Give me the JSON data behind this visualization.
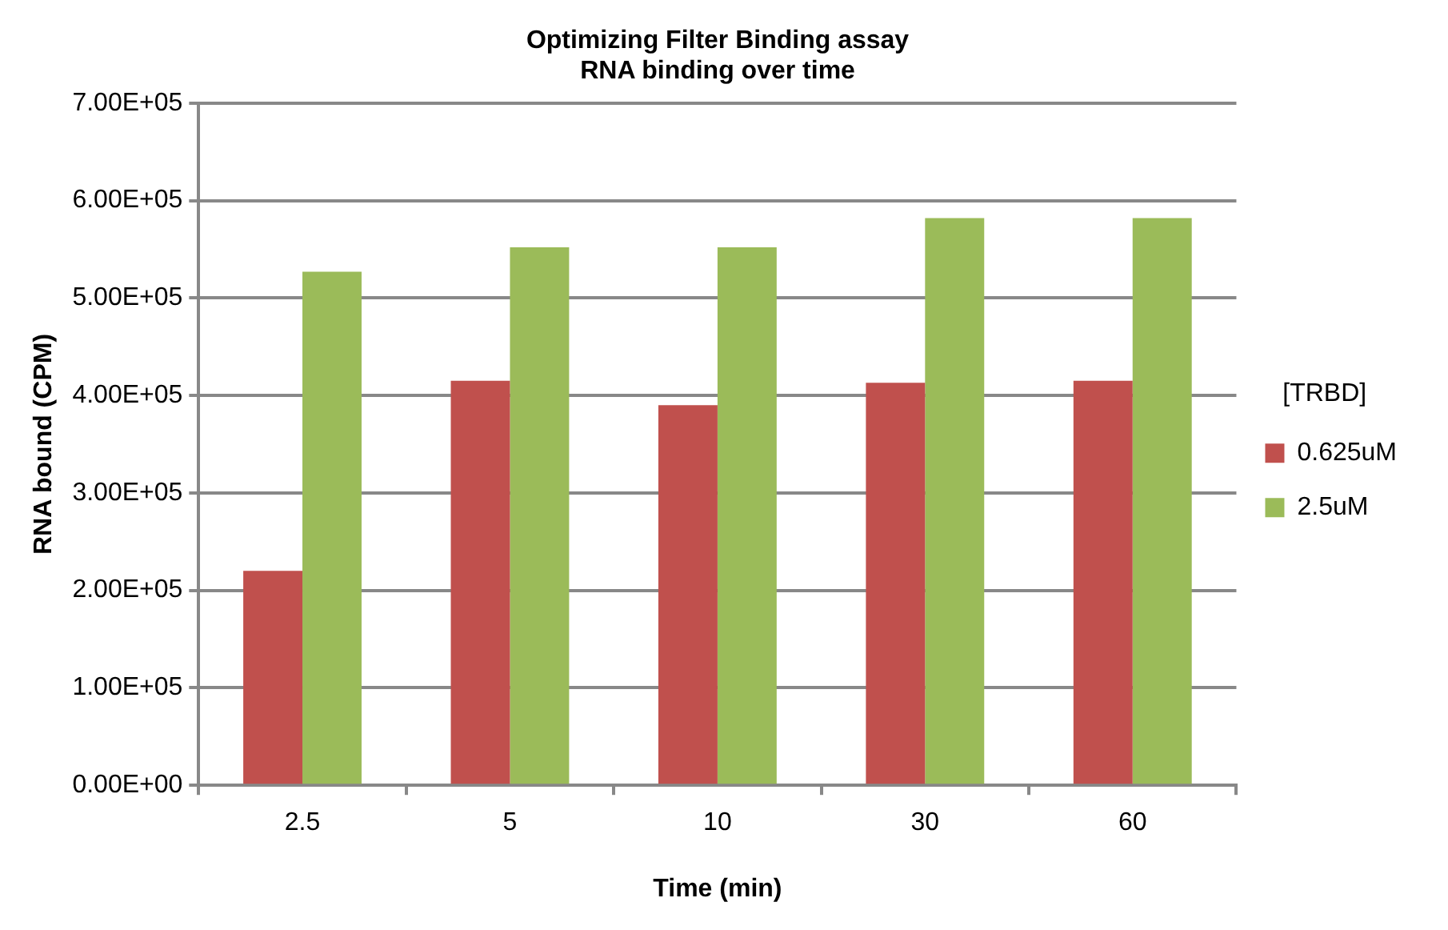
{
  "chart_data": {
    "type": "bar",
    "title": "Optimizing Filter Binding assay",
    "subtitle": "RNA binding over time",
    "xlabel": "Time (min)",
    "ylabel": "RNA bound (CPM)",
    "legend_title": "[TRBD]",
    "legend": "right",
    "grid": "y",
    "categories": [
      "2.5",
      "5",
      "10",
      "30",
      "60"
    ],
    "series": [
      {
        "name": "0.625uM",
        "color": "#c0504d",
        "values": [
          220000,
          415000,
          390000,
          413000,
          415000
        ]
      },
      {
        "name": "2.5uM",
        "color": "#9bbb59",
        "values": [
          527000,
          552000,
          552000,
          582000,
          582000
        ]
      }
    ],
    "ylim": [
      0,
      700000
    ],
    "yticks": [
      {
        "value": 0,
        "label": "0.00E+00"
      },
      {
        "value": 100000,
        "label": "1.00E+05"
      },
      {
        "value": 200000,
        "label": "2.00E+05"
      },
      {
        "value": 300000,
        "label": "3.00E+05"
      },
      {
        "value": 400000,
        "label": "4.00E+05"
      },
      {
        "value": 500000,
        "label": "5.00E+05"
      },
      {
        "value": 600000,
        "label": "6.00E+05"
      },
      {
        "value": 700000,
        "label": "7.00E+05"
      }
    ]
  }
}
